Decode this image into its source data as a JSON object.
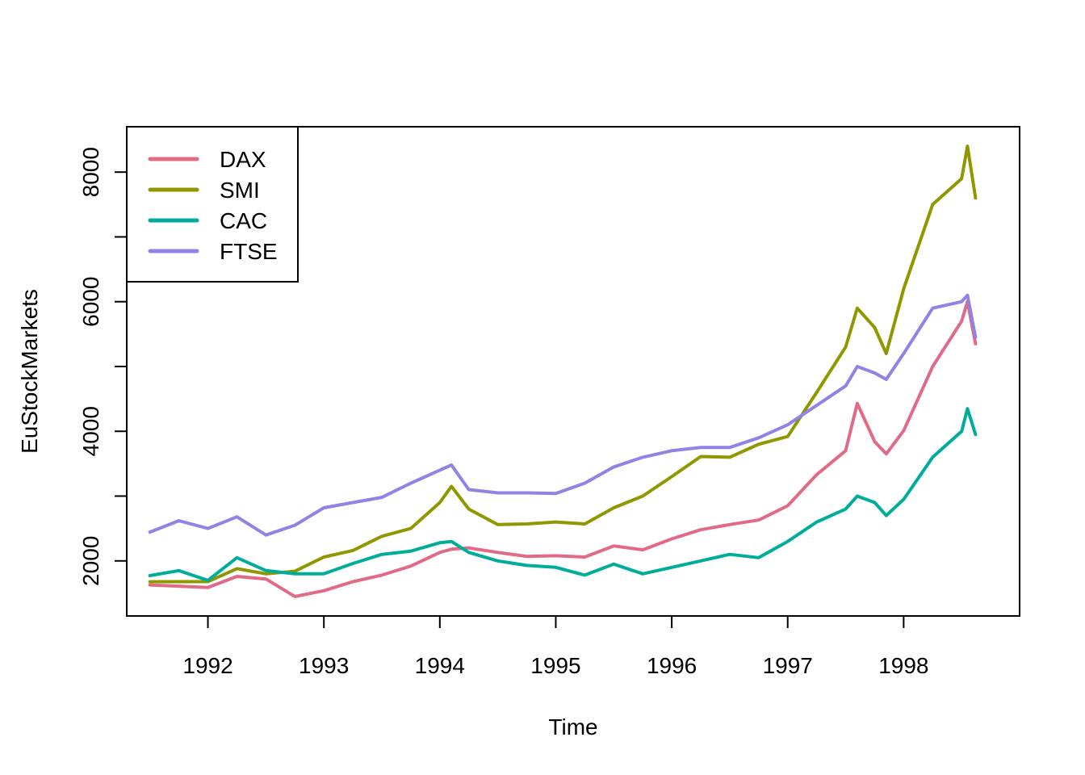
{
  "chart_data": {
    "type": "line",
    "title": "",
    "xlabel": "Time",
    "ylabel": "EuStockMarkets",
    "xlim": [
      1991.3,
      1999.0
    ],
    "ylim": [
      1150,
      8700
    ],
    "xticks": [
      1992,
      1993,
      1994,
      1995,
      1996,
      1997,
      1998
    ],
    "xtick_labels": [
      "1992",
      "1993",
      "1994",
      "1995",
      "1996",
      "1997",
      "1998"
    ],
    "yticks": [
      2000,
      3000,
      4000,
      5000,
      6000,
      7000,
      8000
    ],
    "ytick_labels": [
      "2000",
      "",
      "4000",
      "",
      "6000",
      "",
      "8000"
    ],
    "grid": false,
    "legend_position": "top-left",
    "x": [
      1991.5,
      1991.75,
      1992.0,
      1992.25,
      1992.5,
      1992.75,
      1993.0,
      1993.25,
      1993.5,
      1993.75,
      1994.0,
      1994.1,
      1994.25,
      1994.5,
      1994.75,
      1995.0,
      1995.25,
      1995.5,
      1995.75,
      1996.0,
      1996.25,
      1996.5,
      1996.75,
      1997.0,
      1997.25,
      1997.5,
      1997.6,
      1997.75,
      1997.85,
      1998.0,
      1998.25,
      1998.5,
      1998.55,
      1998.62
    ],
    "series": [
      {
        "name": "DAX",
        "color": "#E16A86",
        "values": [
          1628,
          1610,
          1590,
          1760,
          1720,
          1450,
          1540,
          1680,
          1780,
          1920,
          2130,
          2180,
          2200,
          2130,
          2070,
          2080,
          2060,
          2230,
          2170,
          2340,
          2480,
          2560,
          2630,
          2850,
          3330,
          3700,
          4430,
          3840,
          3650,
          4010,
          5000,
          5700,
          6000,
          5350
        ]
      },
      {
        "name": "SMI",
        "color": "#909800",
        "values": [
          1678,
          1680,
          1680,
          1880,
          1800,
          1840,
          2060,
          2160,
          2380,
          2500,
          2900,
          3150,
          2800,
          2560,
          2570,
          2600,
          2570,
          2820,
          3000,
          3300,
          3610,
          3600,
          3800,
          3920,
          4600,
          5300,
          5900,
          5600,
          5200,
          6200,
          7500,
          7900,
          8400,
          7600
        ]
      },
      {
        "name": "CAC",
        "color": "#00AD9A",
        "values": [
          1773,
          1850,
          1700,
          2050,
          1850,
          1800,
          1800,
          1960,
          2100,
          2150,
          2280,
          2300,
          2130,
          2000,
          1930,
          1900,
          1780,
          1950,
          1800,
          1900,
          2000,
          2100,
          2050,
          2300,
          2600,
          2800,
          3000,
          2900,
          2700,
          2950,
          3600,
          4000,
          4350,
          3950
        ]
      },
      {
        "name": "FTSE",
        "color": "#9183E6",
        "values": [
          2444,
          2620,
          2500,
          2680,
          2400,
          2550,
          2820,
          2900,
          2980,
          3200,
          3400,
          3480,
          3100,
          3050,
          3050,
          3040,
          3200,
          3450,
          3600,
          3700,
          3750,
          3750,
          3900,
          4100,
          4400,
          4700,
          5000,
          4900,
          4800,
          5200,
          5900,
          6000,
          6100,
          5450
        ]
      }
    ]
  }
}
